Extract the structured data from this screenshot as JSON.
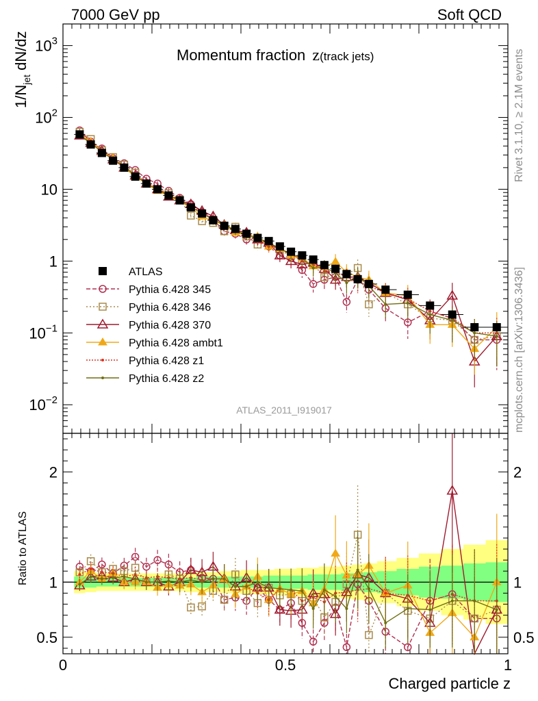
{
  "header": {
    "left": "7000 GeV pp",
    "right": "Soft QCD"
  },
  "side_labels": {
    "rivet": "Rivet 3.1.10, ≥ 2.1M events",
    "mcplots": "mcplots.cern.ch [arXiv:1306.3436]"
  },
  "chart_data": [
    {
      "type": "scatter",
      "panel": "main",
      "title": "Momentum fraction",
      "title_var": "z",
      "title_sub": "(track jets)",
      "ylabel": "1/N",
      "ylabel_sub": "jet",
      "ylabel_rest": " dN/dz",
      "analysis_label": "ATLAS_2011_I919017",
      "y_scale": "log",
      "xlim": [
        0,
        1
      ],
      "ylim": [
        0.004,
        2000
      ],
      "y_ticks": [
        {
          "value": 0.01,
          "mantissa": "10",
          "exp": "−2"
        },
        {
          "value": 0.1,
          "mantissa": "10",
          "exp": "−1"
        },
        {
          "value": 1,
          "mantissa": "1",
          "exp": ""
        },
        {
          "value": 10,
          "mantissa": "10",
          "exp": ""
        },
        {
          "value": 100,
          "mantissa": "10",
          "exp": "2"
        },
        {
          "value": 1000,
          "mantissa": "10",
          "exp": "3"
        }
      ],
      "x": [
        0.0375,
        0.0625,
        0.0875,
        0.1125,
        0.1375,
        0.1625,
        0.1875,
        0.2125,
        0.2375,
        0.2625,
        0.2875,
        0.3125,
        0.3375,
        0.3625,
        0.3875,
        0.4125,
        0.4375,
        0.4625,
        0.4875,
        0.5125,
        0.5375,
        0.5625,
        0.5875,
        0.6125,
        0.6375,
        0.6625,
        0.6875,
        0.725,
        0.775,
        0.825,
        0.875,
        0.925,
        0.975
      ],
      "legend_position": "left-middle",
      "series": [
        {
          "name": "ATLAS",
          "color": "#000000",
          "marker": "square-filled",
          "values": [
            58,
            42,
            32,
            25,
            20,
            15,
            12,
            10,
            8.2,
            7.0,
            5.6,
            4.6,
            3.7,
            3.1,
            2.8,
            2.4,
            2.1,
            1.9,
            1.6,
            1.35,
            1.2,
            1.05,
            0.88,
            0.78,
            0.66,
            0.56,
            0.48,
            0.4,
            0.34,
            0.24,
            0.18,
            0.12,
            0.12
          ]
        },
        {
          "name": "Pythia 6.428 345",
          "color": "#b03050",
          "marker": "circle-open",
          "dash": "6,3",
          "values": [
            66,
            46,
            37,
            27,
            23,
            18.5,
            14,
            12,
            9.5,
            7.6,
            6.2,
            4.8,
            3.8,
            2.6,
            2.4,
            2.0,
            2.0,
            1.6,
            1.2,
            1.1,
            0.75,
            0.48,
            0.55,
            0.6,
            0.27,
            0.55,
            0.4,
            0.22,
            0.14,
            0.2,
            0.16,
            0.08,
            0.08
          ]
        },
        {
          "name": "Pythia 6.428 346",
          "color": "#a88a4a",
          "marker": "square-open",
          "dash": "2,3",
          "values": [
            63,
            50,
            35,
            28,
            22,
            17,
            12,
            10,
            8.8,
            7.2,
            4.3,
            3.6,
            3.4,
            2.6,
            3.0,
            2.2,
            1.7,
            1.8,
            1.4,
            1.2,
            1.0,
            0.9,
            0.6,
            0.64,
            0.65,
            0.8,
            0.25,
            0.36,
            0.25,
            0.16,
            0.15,
            0.08,
            0.09
          ]
        },
        {
          "name": "Pythia 6.428 370",
          "color": "#9e1a2e",
          "marker": "triangle-open",
          "values": [
            56,
            44,
            34,
            26,
            20,
            15.5,
            12,
            10,
            7.9,
            7.0,
            6.2,
            5.0,
            4.2,
            3.2,
            2.7,
            2.5,
            2.0,
            1.8,
            1.2,
            1.0,
            0.9,
            0.95,
            0.78,
            0.55,
            0.6,
            0.6,
            0.5,
            0.36,
            0.29,
            0.15,
            0.33,
            0.04,
            0.09
          ]
        },
        {
          "name": "Pythia 6.428 ambt1",
          "color": "#f0a818",
          "marker": "triangle-filled",
          "values": [
            58,
            46,
            33,
            27,
            20,
            15,
            12,
            9.5,
            8.0,
            6.8,
            5.5,
            4.2,
            3.6,
            3.2,
            2.5,
            2.3,
            2.2,
            1.6,
            1.5,
            1.2,
            1.1,
            0.85,
            0.82,
            0.98,
            0.7,
            0.6,
            0.55,
            0.36,
            0.33,
            0.13,
            0.13,
            0.06,
            0.12
          ]
        },
        {
          "name": "Pythia 6.428 z1",
          "color": "#e0301e",
          "marker": "dot",
          "dash": "2,2",
          "values": [
            62,
            47,
            35,
            27,
            21,
            16,
            12.5,
            10.5,
            8.5,
            7.2,
            5.8,
            4.7,
            3.8,
            3.2,
            2.7,
            2.3,
            1.9,
            1.6,
            1.5,
            1.25,
            1.0,
            0.9,
            0.72,
            0.7,
            0.6,
            0.52,
            0.45,
            0.36,
            0.3,
            0.2,
            0.16,
            0.1,
            0.1
          ]
        },
        {
          "name": "Pythia 6.428 z2",
          "color": "#6f6f12",
          "marker": "dot",
          "values": [
            57,
            44,
            33,
            26,
            21,
            15.5,
            12,
            10,
            8.3,
            7.0,
            5.7,
            4.6,
            3.8,
            3.2,
            2.7,
            2.3,
            2.1,
            1.8,
            1.5,
            1.25,
            1.1,
            0.8,
            0.82,
            0.68,
            0.5,
            0.62,
            0.45,
            0.25,
            0.26,
            0.18,
            0.15,
            0.1,
            0.09
          ]
        }
      ]
    },
    {
      "type": "scatter",
      "panel": "ratio",
      "ylabel": "Ratio to ATLAS",
      "xlabel": "Charged particle z",
      "xlim": [
        0,
        1
      ],
      "ylim": [
        0.35,
        2.35
      ],
      "x_ticks": [
        {
          "value": 0,
          "label": "0"
        },
        {
          "value": 0.5,
          "label": "0.5"
        },
        {
          "value": 1,
          "label": "1"
        }
      ],
      "y_ticks": [
        {
          "value": 0.5,
          "label": "0.5"
        },
        {
          "value": 1,
          "label": "1"
        },
        {
          "value": 2,
          "label": "2"
        }
      ],
      "band_inner": [
        0.05,
        0.05,
        0.04,
        0.04,
        0.04,
        0.04,
        0.04,
        0.04,
        0.04,
        0.04,
        0.04,
        0.05,
        0.05,
        0.05,
        0.05,
        0.05,
        0.05,
        0.06,
        0.06,
        0.06,
        0.06,
        0.07,
        0.07,
        0.07,
        0.08,
        0.08,
        0.09,
        0.1,
        0.12,
        0.14,
        0.15,
        0.17,
        0.18
      ],
      "band_outer": [
        0.1,
        0.09,
        0.08,
        0.08,
        0.08,
        0.08,
        0.08,
        0.08,
        0.08,
        0.08,
        0.09,
        0.09,
        0.09,
        0.1,
        0.1,
        0.11,
        0.11,
        0.11,
        0.12,
        0.12,
        0.13,
        0.13,
        0.14,
        0.14,
        0.15,
        0.16,
        0.17,
        0.19,
        0.22,
        0.26,
        0.3,
        0.34,
        0.38
      ],
      "series": [
        {
          "name": "Pythia 6.428 345",
          "values": [
            1.14,
            1.1,
            1.16,
            1.08,
            1.15,
            1.23,
            1.14,
            1.2,
            1.16,
            1.09,
            1.11,
            1.04,
            1.03,
            0.84,
            0.86,
            0.83,
            0.95,
            0.84,
            0.75,
            0.81,
            0.63,
            0.46,
            0.63,
            0.77,
            0.41,
            0.98,
            0.83,
            0.55,
            0.41,
            0.83,
            0.89,
            0.67,
            0.67
          ]
        },
        {
          "name": "Pythia 6.428 346",
          "values": [
            1.09,
            1.19,
            1.09,
            1.12,
            1.1,
            1.13,
            1.0,
            1.0,
            1.07,
            1.03,
            0.77,
            0.78,
            0.92,
            0.84,
            1.07,
            0.92,
            0.81,
            0.95,
            0.88,
            0.89,
            0.83,
            0.86,
            0.68,
            0.82,
            0.98,
            1.43,
            0.52,
            0.9,
            0.74,
            0.67,
            0.83,
            0.67,
            0.75
          ]
        },
        {
          "name": "Pythia 6.428 370",
          "values": [
            0.97,
            1.05,
            1.06,
            1.04,
            1.0,
            1.03,
            1.0,
            1.0,
            0.96,
            1.0,
            1.11,
            1.09,
            1.14,
            1.03,
            0.96,
            1.04,
            0.95,
            0.95,
            0.75,
            0.74,
            0.75,
            0.9,
            0.89,
            0.71,
            0.91,
            1.07,
            1.04,
            0.9,
            0.85,
            0.63,
            1.83,
            0.33,
            0.75
          ]
        },
        {
          "name": "Pythia 6.428 ambt1",
          "values": [
            1.0,
            1.1,
            1.03,
            1.08,
            1.0,
            1.0,
            1.0,
            0.95,
            0.98,
            0.97,
            0.98,
            0.91,
            0.97,
            1.03,
            0.89,
            0.96,
            1.05,
            0.84,
            0.94,
            0.89,
            0.92,
            0.81,
            0.93,
            1.26,
            1.06,
            1.07,
            1.15,
            0.9,
            0.97,
            0.54,
            0.72,
            0.5,
            1.0
          ]
        },
        {
          "name": "Pythia 6.428 z1",
          "values": [
            1.07,
            1.12,
            1.09,
            1.08,
            1.05,
            1.07,
            1.04,
            1.05,
            1.04,
            1.03,
            1.04,
            1.02,
            1.03,
            1.03,
            0.96,
            0.96,
            0.9,
            0.84,
            0.94,
            0.93,
            0.83,
            0.86,
            0.82,
            0.9,
            0.91,
            0.93,
            0.94,
            0.9,
            0.88,
            0.83,
            0.89,
            0.83,
            0.83
          ]
        },
        {
          "name": "Pythia 6.428 z2",
          "values": [
            0.98,
            1.05,
            1.03,
            1.04,
            1.05,
            1.03,
            1.0,
            1.0,
            1.01,
            1.0,
            1.02,
            1.0,
            1.03,
            1.03,
            0.96,
            0.96,
            1.0,
            0.95,
            0.94,
            0.93,
            0.92,
            0.76,
            0.93,
            0.87,
            0.76,
            1.11,
            0.94,
            0.63,
            0.76,
            0.75,
            0.83,
            0.83,
            0.75
          ]
        }
      ]
    }
  ]
}
